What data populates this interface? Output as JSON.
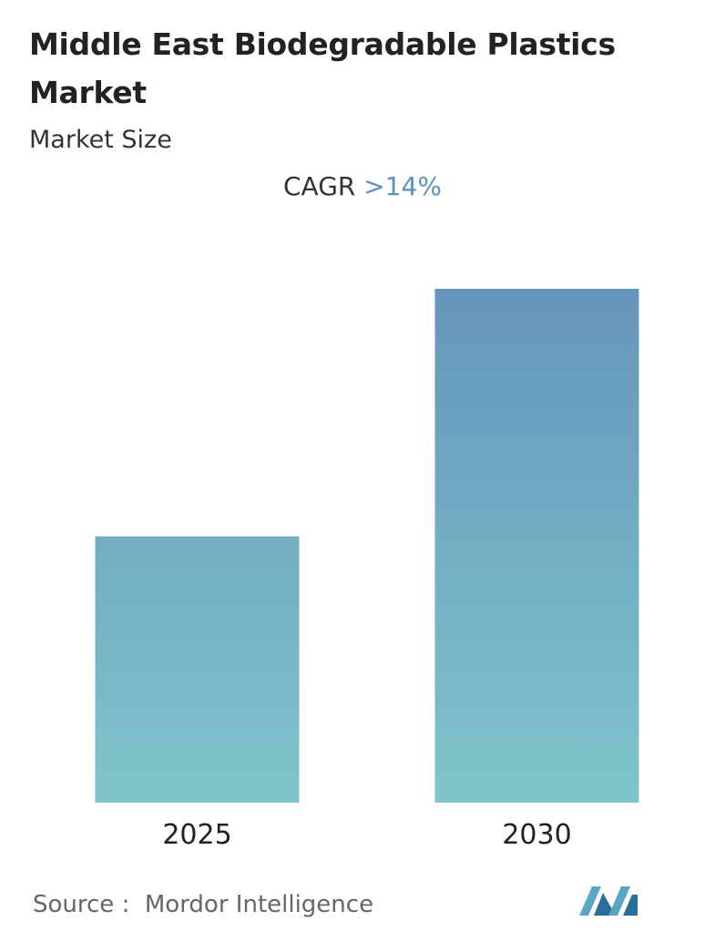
{
  "chart_data": {
    "type": "bar",
    "title": "Middle East Biodegradable Plastics Market",
    "subtitle": "Market Size",
    "cagr_label": "CAGR",
    "cagr_value": ">14%",
    "categories": [
      "2025",
      "2030"
    ],
    "values": [
      1,
      1.93
    ],
    "ylim": [
      0,
      1.93
    ],
    "color_top": "#6596bb",
    "color_bottom": "#80c4cb",
    "source_label": "Source :",
    "source": "Mordor Intelligence"
  }
}
